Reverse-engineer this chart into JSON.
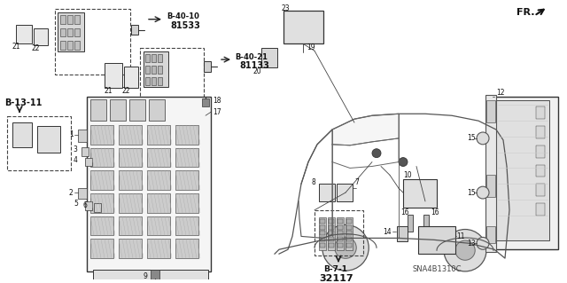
{
  "bg_color": "#ffffff",
  "dc": "#222222",
  "lc": "#111111",
  "figsize": [
    6.4,
    3.19
  ],
  "dpi": 100,
  "xlim": [
    0,
    640
  ],
  "ylim": [
    0,
    319
  ]
}
